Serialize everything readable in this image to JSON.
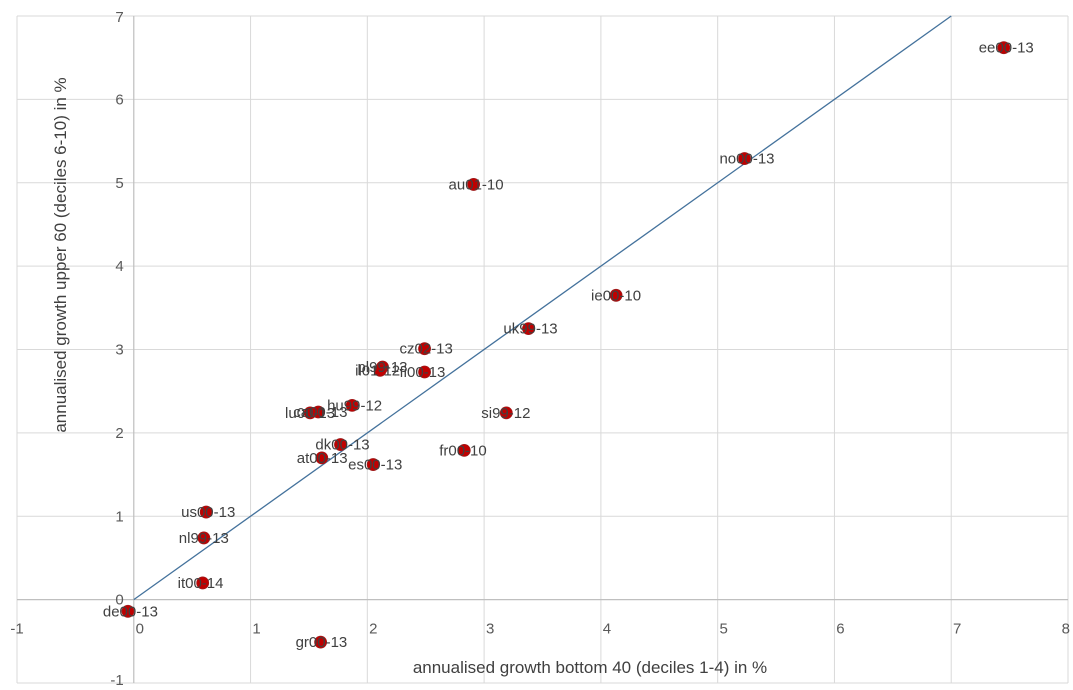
{
  "chart_data": {
    "type": "scatter",
    "title": "",
    "xlabel": "annualised growth bottom 40 (deciles 1-4) in %",
    "ylabel": "annualised growth upper 60 (deciles 6-10) in %",
    "xlim": [
      -1,
      8
    ],
    "ylim": [
      -1,
      7
    ],
    "x_ticks": [
      "-1",
      "0",
      "1",
      "2",
      "3",
      "4",
      "5",
      "6",
      "7",
      "8"
    ],
    "y_ticks": [
      "-1",
      "0",
      "1",
      "2",
      "3",
      "4",
      "5",
      "6",
      "7"
    ],
    "grid": "vertical and horizontal",
    "reference_line": {
      "from": [
        0,
        0
      ],
      "to": [
        7,
        7
      ],
      "color": "#44729c"
    },
    "marker_color": "#c00000",
    "points": [
      {
        "label": "ee00-13",
        "x": 7.45,
        "y": 6.62
      },
      {
        "label": "no00-13",
        "x": 5.23,
        "y": 5.29
      },
      {
        "label": "au01-10",
        "x": 2.91,
        "y": 4.98
      },
      {
        "label": "ie00-10",
        "x": 4.13,
        "y": 3.65
      },
      {
        "label": "uk99-13",
        "x": 3.38,
        "y": 3.25
      },
      {
        "label": "cz02-13",
        "x": 2.49,
        "y": 3.01
      },
      {
        "label": "pl99-13",
        "x": 2.13,
        "y": 2.79
      },
      {
        "label": "il01-12",
        "x": 2.11,
        "y": 2.75
      },
      {
        "label": "fi00-13",
        "x": 2.49,
        "y": 2.73
      },
      {
        "label": "hu99-12",
        "x": 1.87,
        "y": 2.33
      },
      {
        "label": "lu00-13",
        "x": 1.51,
        "y": 2.24
      },
      {
        "label": "ca00-13",
        "x": 1.58,
        "y": 2.25
      },
      {
        "label": "si99-12",
        "x": 3.19,
        "y": 2.24
      },
      {
        "label": "dk00-13",
        "x": 1.77,
        "y": 1.86
      },
      {
        "label": "fr00-10",
        "x": 2.83,
        "y": 1.79
      },
      {
        "label": "at00-13",
        "x": 1.61,
        "y": 1.7
      },
      {
        "label": "es00-13",
        "x": 2.05,
        "y": 1.62
      },
      {
        "label": "us00-13",
        "x": 0.62,
        "y": 1.05
      },
      {
        "label": "nl99-13",
        "x": 0.6,
        "y": 0.74
      },
      {
        "label": "it00-14",
        "x": 0.59,
        "y": 0.2
      },
      {
        "label": "de00-13",
        "x": -0.05,
        "y": -0.14
      },
      {
        "label": "gr00-13",
        "x": 1.6,
        "y": -0.51
      }
    ]
  }
}
